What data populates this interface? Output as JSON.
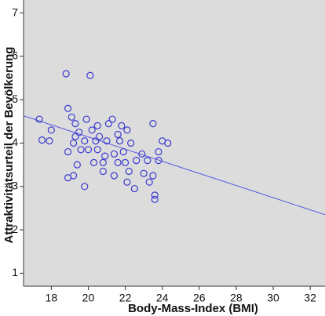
{
  "chart_data": {
    "type": "scatter",
    "x_label": "Body-Mass-Index (BMI)",
    "y_label": "Attraktivitätsurteil der Bevölkerung",
    "color": "#3a3ad0",
    "line_color": "#5a5ae0",
    "x": [
      17.35,
      17.5,
      17.9,
      18.0,
      18.8,
      20.1,
      18.9,
      19.1,
      18.9,
      18.9,
      19.2,
      19.8,
      19.5,
      19.3,
      19.8,
      19.9,
      20.2,
      20.4,
      20.6,
      20.3,
      20.8,
      21.0,
      21.1,
      21.3,
      21.8,
      21.7,
      21.9,
      22.0,
      22.2,
      22.1,
      22.3,
      22.6,
      22.9,
      22.5,
      23.3,
      23.5,
      23.5,
      23.6,
      23.6,
      23.8,
      23.8,
      24.0,
      24.3,
      23.2,
      23.0,
      21.4,
      20.8,
      19.6,
      19.4,
      20.5,
      20.0,
      21.4,
      20.9,
      21.6,
      21.6,
      22.1,
      19.3,
      19.2,
      20.5
    ],
    "values": [
      4.55,
      4.07,
      4.05,
      4.3,
      5.6,
      5.56,
      4.8,
      4.6,
      3.8,
      3.2,
      3.25,
      3.0,
      4.25,
      4.45,
      4.05,
      4.55,
      4.3,
      4.05,
      4.15,
      3.55,
      3.55,
      4.05,
      4.45,
      4.55,
      4.4,
      4.05,
      3.8,
      3.55,
      3.35,
      3.1,
      4.0,
      3.6,
      3.75,
      2.95,
      3.1,
      3.25,
      4.45,
      2.8,
      2.7,
      3.6,
      3.8,
      4.05,
      4.0,
      3.6,
      3.3,
      3.25,
      3.35,
      3.85,
      3.5,
      3.85,
      3.85,
      3.75,
      3.7,
      3.55,
      4.2,
      4.3,
      4.15,
      4.0,
      4.4
    ],
    "fit_line": {
      "x": [
        16.5,
        32.8
      ],
      "y": [
        4.63,
        2.35
      ]
    },
    "xlim": [
      16.5,
      32.8
    ],
    "ylim": [
      0.7,
      7.3
    ],
    "xticks": [
      18,
      20,
      22,
      24,
      26,
      28,
      30,
      32
    ],
    "yticks": [
      1,
      2,
      3,
      4,
      5,
      6,
      7
    ]
  }
}
